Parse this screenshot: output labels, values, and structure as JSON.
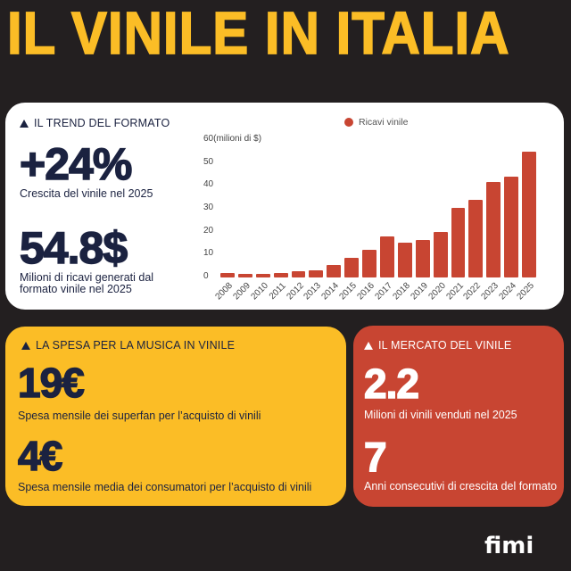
{
  "header": {
    "title": "IL VINILE IN ITALIA"
  },
  "trend": {
    "section_title": "IL TREND DEL FORMATO",
    "growth_value": "+24%",
    "growth_caption": "Crescita del vinile nel 2025",
    "revenue_value": "54.8$",
    "revenue_caption_line1": "Milioni di ricavi generati dal",
    "revenue_caption_line2": "formato vinile nel 2025"
  },
  "spesa": {
    "section_title": "LA SPESA PER LA MUSICA IN VINILE",
    "superfan_value": "19€",
    "superfan_caption": "Spesa mensile dei superfan per l’acquisto di vinili",
    "average_value": "4€",
    "average_caption": "Spesa mensile media dei consumatori per l’acquisto di vinili"
  },
  "mercato": {
    "section_title": "IL MERCATO DEL VINILE",
    "sold_value": "2.2",
    "sold_caption": "Milioni di vinili venduti nel 2025",
    "years_value": "7",
    "years_caption": "Anni consecutivi di crescita del formato"
  },
  "colors": {
    "background": "#231f20",
    "yellow": "#fbbd26",
    "red": "#c84532",
    "navy": "#1b2240",
    "white": "#ffffff"
  },
  "logo": {
    "text": "fimi"
  },
  "chart_data": {
    "type": "bar",
    "title": "",
    "xlabel": "",
    "ylabel": "(milioni di $)",
    "ylim": [
      0,
      60
    ],
    "yticks": [
      0,
      10,
      20,
      30,
      40,
      50,
      60
    ],
    "ytick_labels": [
      "0",
      "10",
      "20",
      "30",
      "40",
      "50",
      "60(milioni di $)"
    ],
    "legend": {
      "position": "top",
      "entries": [
        "Ricavi vinile"
      ]
    },
    "grid": false,
    "categories": [
      "2008",
      "2009",
      "2010",
      "2011",
      "2012",
      "2013",
      "2014",
      "2015",
      "2016",
      "2017",
      "2018",
      "2019",
      "2020",
      "2021",
      "2022",
      "2023",
      "2024",
      "2025"
    ],
    "series": [
      {
        "name": "Ricavi vinile",
        "color": "#c84532",
        "values": [
          1.8,
          1.7,
          1.7,
          1.8,
          2.7,
          3.0,
          5.5,
          8.4,
          12.0,
          18.0,
          15.2,
          16.4,
          19.8,
          30.3,
          33.8,
          41.6,
          44.0,
          54.8
        ]
      }
    ]
  }
}
